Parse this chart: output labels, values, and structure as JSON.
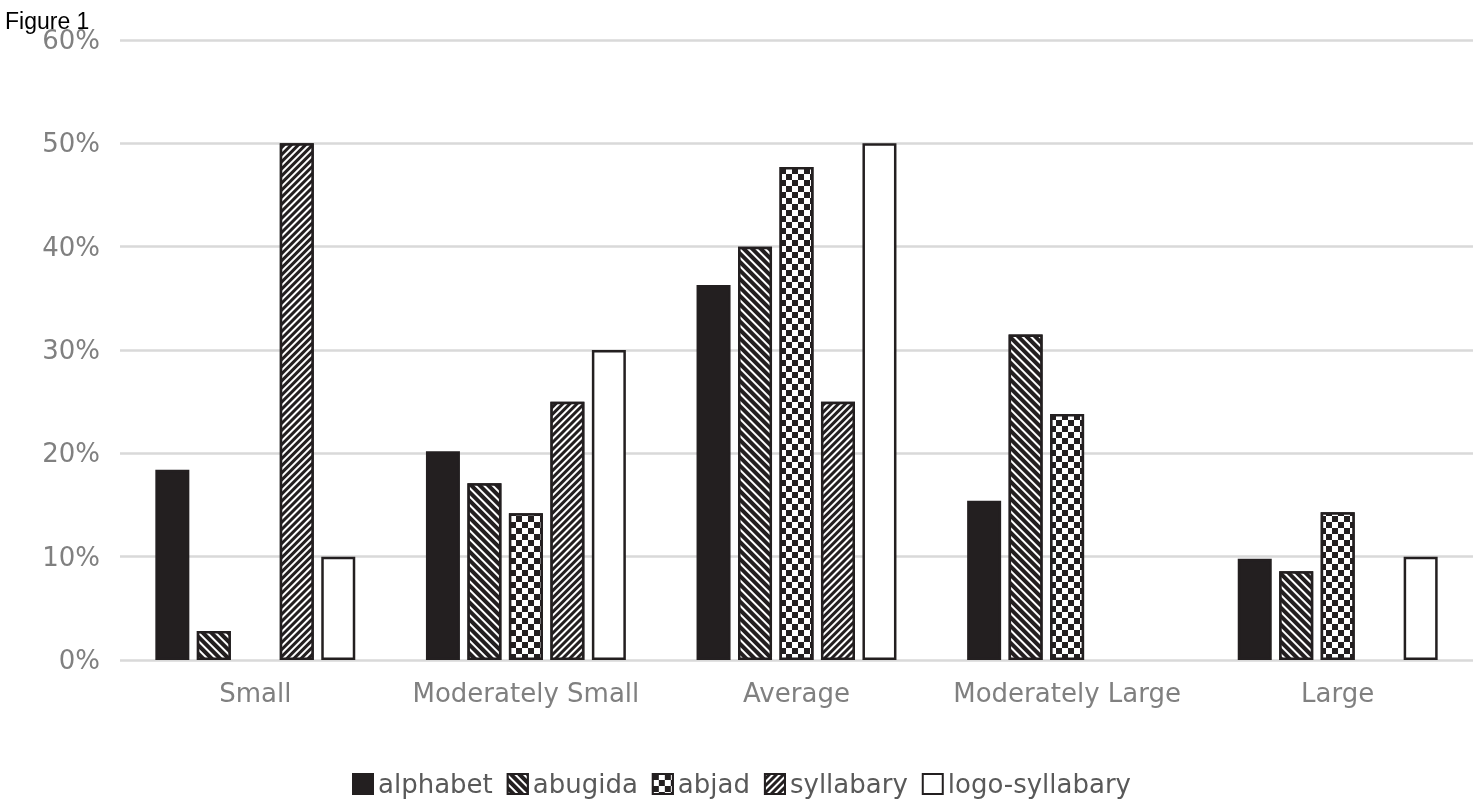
{
  "chart_data": {
    "type": "bar",
    "title": "Figure 1",
    "categories": [
      "Small",
      "Moderately Small",
      "Average",
      "Moderately Large",
      "Large"
    ],
    "series": [
      {
        "name": "alphabet",
        "color": "#231f20",
        "values": [
          18.4,
          20.2,
          36.3,
          15.4,
          9.8
        ]
      },
      {
        "name": "abugida",
        "color": "#231f20",
        "values": [
          2.8,
          17.1,
          40,
          31.5,
          8.6
        ]
      },
      {
        "name": "abjad",
        "color": "#231f20",
        "values": [
          null,
          14.2,
          47.7,
          23.8,
          14.3
        ]
      },
      {
        "name": "syllabary",
        "color": "#231f20",
        "values": [
          50,
          25,
          25,
          null,
          null
        ]
      },
      {
        "name": "logo-syllabary",
        "color": "#ffffff",
        "values": [
          10,
          30,
          50,
          null,
          10
        ]
      }
    ],
    "ylim": [
      0,
      60
    ],
    "yticks": [
      {
        "value": 0,
        "label": "0%"
      },
      {
        "value": 10,
        "label": "10%"
      },
      {
        "value": 20,
        "label": "20%"
      },
      {
        "value": 30,
        "label": "30%"
      },
      {
        "value": 40,
        "label": "40%"
      },
      {
        "value": 50,
        "label": "50%"
      },
      {
        "value": 60,
        "label": "60%"
      }
    ],
    "grid": "y",
    "legend": "bottom"
  }
}
